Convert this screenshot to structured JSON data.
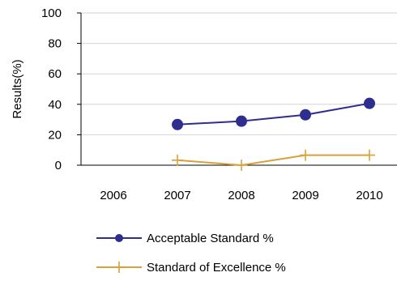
{
  "chart_data": {
    "type": "line",
    "ylabel": "Results(%)",
    "ylim": [
      0,
      100
    ],
    "yticks": [
      0,
      20,
      40,
      60,
      80,
      100
    ],
    "categories": [
      "2006",
      "2007",
      "2008",
      "2009",
      "2010"
    ],
    "grid": true,
    "legend_position": "bottom",
    "series": [
      {
        "name": "Acceptable Standard %",
        "color": "#2e2e8f",
        "marker": "circle",
        "values": [
          null,
          26.7,
          28.9,
          33.1,
          40.6
        ]
      },
      {
        "name": "Standard of Excellence %",
        "color": "#d9a13a",
        "marker": "plus",
        "values": [
          null,
          3.3,
          0.0,
          6.6,
          6.6
        ]
      }
    ]
  }
}
